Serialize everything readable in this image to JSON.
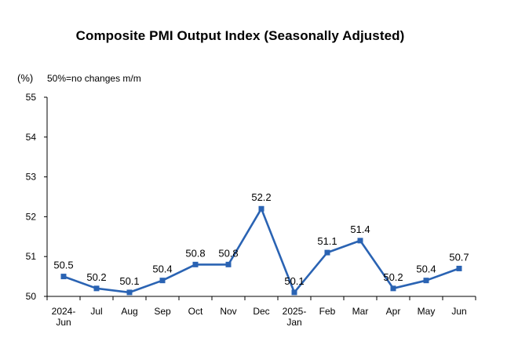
{
  "chart_data": {
    "type": "line",
    "title": "Composite PMI Output Index (Seasonally Adjusted)",
    "ylabel": "(%)",
    "note": "50%=no changes m/m",
    "categories": [
      [
        "2024-",
        "Jun"
      ],
      [
        "Jul"
      ],
      [
        "Aug"
      ],
      [
        "Sep"
      ],
      [
        "Oct"
      ],
      [
        "Nov"
      ],
      [
        "Dec"
      ],
      [
        "2025-",
        "Jan"
      ],
      [
        "Feb"
      ],
      [
        "Mar"
      ],
      [
        "Apr"
      ],
      [
        "May"
      ],
      [
        "Jun"
      ]
    ],
    "values": [
      50.5,
      50.2,
      50.1,
      50.4,
      50.8,
      50.8,
      52.2,
      50.1,
      51.1,
      51.4,
      50.2,
      50.4,
      50.7
    ],
    "value_labels": [
      "50.5",
      "50.2",
      "50.1",
      "50.4",
      "50.8",
      "50.8",
      "52.2",
      "50.1",
      "51.1",
      "51.4",
      "50.2",
      "50.4",
      "50.7"
    ],
    "ylim": [
      50,
      55
    ],
    "yticks": [
      50,
      51,
      52,
      53,
      54,
      55
    ],
    "grid": false,
    "legend": "none",
    "line_color": "#2a63b3",
    "marker": "square"
  }
}
